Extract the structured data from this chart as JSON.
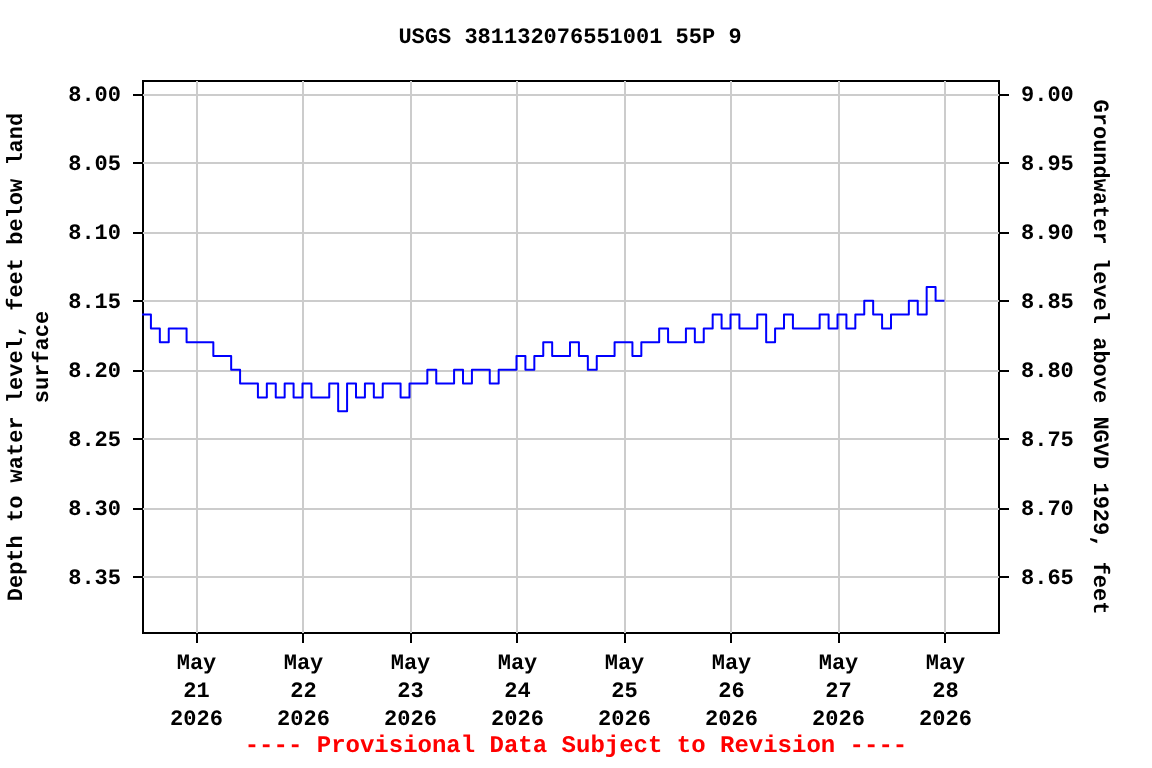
{
  "chart_data": {
    "type": "step",
    "title": "USGS 381132076551001 55P  9",
    "xlabel": null,
    "ylabel": "Depth to water level, feet below land surface",
    "y2label": "Groundwater level above NGVD 1929, feet",
    "annotations": [
      "---- Provisional Data Subject to Revision ----"
    ],
    "xlim": [
      "2026-05-20T12:00",
      "2026-05-28T12:00"
    ],
    "xticks": [
      {
        "value": "2026-05-21T00:00",
        "label": "May\n21\n2026"
      },
      {
        "value": "2026-05-22T00:00",
        "label": "May\n22\n2026"
      },
      {
        "value": "2026-05-23T00:00",
        "label": "May\n23\n2026"
      },
      {
        "value": "2026-05-24T00:00",
        "label": "May\n24\n2026"
      },
      {
        "value": "2026-05-25T00:00",
        "label": "May\n25\n2026"
      },
      {
        "value": "2026-05-26T00:00",
        "label": "May\n26\n2026"
      },
      {
        "value": "2026-05-27T00:00",
        "label": "May\n27\n2026"
      },
      {
        "value": "2026-05-28T00:00",
        "label": "May\n28\n2026"
      }
    ],
    "ylim": [
      8.39,
      7.99
    ],
    "yticks": [
      {
        "value": 8,
        "label": "8.00"
      },
      {
        "value": 8.05,
        "label": "8.05"
      },
      {
        "value": 8.1,
        "label": "8.10"
      },
      {
        "value": 8.15,
        "label": "8.15"
      },
      {
        "value": 8.2,
        "label": "8.20"
      },
      {
        "value": 8.25,
        "label": "8.25"
      },
      {
        "value": 8.3,
        "label": "8.30"
      },
      {
        "value": 8.35,
        "label": "8.35"
      }
    ],
    "y2lim": [
      8.61,
      9.01
    ],
    "y2ticks": [
      {
        "value": 9,
        "label": "9.00"
      },
      {
        "value": 8.95,
        "label": "8.95"
      },
      {
        "value": 8.9,
        "label": "8.90"
      },
      {
        "value": 8.85,
        "label": "8.85"
      },
      {
        "value": 8.8,
        "label": "8.80"
      },
      {
        "value": 8.75,
        "label": "8.75"
      },
      {
        "value": 8.7,
        "label": "8.70"
      },
      {
        "value": 8.65,
        "label": "8.65"
      }
    ],
    "grid": true,
    "x": [
      "2026-05-20T12:00",
      "2026-05-20T14:00",
      "2026-05-20T16:00",
      "2026-05-20T18:00",
      "2026-05-20T20:00",
      "2026-05-20T22:00",
      "2026-05-21T00:00",
      "2026-05-21T02:00",
      "2026-05-21T04:00",
      "2026-05-21T06:00",
      "2026-05-21T08:00",
      "2026-05-21T10:00",
      "2026-05-21T12:00",
      "2026-05-21T14:00",
      "2026-05-21T16:00",
      "2026-05-21T18:00",
      "2026-05-21T20:00",
      "2026-05-21T22:00",
      "2026-05-22T00:00",
      "2026-05-22T02:00",
      "2026-05-22T04:00",
      "2026-05-22T06:00",
      "2026-05-22T08:00",
      "2026-05-22T10:00",
      "2026-05-22T12:00",
      "2026-05-22T14:00",
      "2026-05-22T16:00",
      "2026-05-22T18:00",
      "2026-05-22T20:00",
      "2026-05-22T22:00",
      "2026-05-23T00:00",
      "2026-05-23T02:00",
      "2026-05-23T04:00",
      "2026-05-23T06:00",
      "2026-05-23T08:00",
      "2026-05-23T10:00",
      "2026-05-23T12:00",
      "2026-05-23T14:00",
      "2026-05-23T16:00",
      "2026-05-23T18:00",
      "2026-05-23T20:00",
      "2026-05-23T22:00",
      "2026-05-24T00:00",
      "2026-05-24T02:00",
      "2026-05-24T04:00",
      "2026-05-24T06:00",
      "2026-05-24T08:00",
      "2026-05-24T10:00",
      "2026-05-24T12:00",
      "2026-05-24T14:00",
      "2026-05-24T16:00",
      "2026-05-24T18:00",
      "2026-05-24T20:00",
      "2026-05-24T22:00",
      "2026-05-25T00:00",
      "2026-05-25T02:00",
      "2026-05-25T04:00",
      "2026-05-25T06:00",
      "2026-05-25T08:00",
      "2026-05-25T10:00",
      "2026-05-25T12:00",
      "2026-05-25T14:00",
      "2026-05-25T16:00",
      "2026-05-25T18:00",
      "2026-05-25T20:00",
      "2026-05-25T22:00",
      "2026-05-26T00:00",
      "2026-05-26T02:00",
      "2026-05-26T04:00",
      "2026-05-26T06:00",
      "2026-05-26T08:00",
      "2026-05-26T10:00",
      "2026-05-26T12:00",
      "2026-05-26T14:00",
      "2026-05-26T16:00",
      "2026-05-26T18:00",
      "2026-05-26T20:00",
      "2026-05-26T22:00",
      "2026-05-27T00:00",
      "2026-05-27T02:00",
      "2026-05-27T04:00",
      "2026-05-27T06:00",
      "2026-05-27T08:00",
      "2026-05-27T10:00",
      "2026-05-27T12:00",
      "2026-05-27T14:00",
      "2026-05-27T16:00",
      "2026-05-27T18:00",
      "2026-05-27T20:00",
      "2026-05-27T22:00",
      "2026-05-28T00:00"
    ],
    "series": [
      {
        "color": "#0000ff",
        "values": [
          8.16,
          8.17,
          8.18,
          8.17,
          8.17,
          8.18,
          8.18,
          8.18,
          8.19,
          8.19,
          8.2,
          8.21,
          8.21,
          8.22,
          8.21,
          8.22,
          8.21,
          8.22,
          8.21,
          8.22,
          8.22,
          8.21,
          8.23,
          8.21,
          8.22,
          8.21,
          8.22,
          8.21,
          8.21,
          8.22,
          8.21,
          8.21,
          8.2,
          8.21,
          8.21,
          8.2,
          8.21,
          8.2,
          8.2,
          8.21,
          8.2,
          8.2,
          8.19,
          8.2,
          8.19,
          8.18,
          8.19,
          8.19,
          8.18,
          8.19,
          8.2,
          8.19,
          8.19,
          8.18,
          8.18,
          8.19,
          8.18,
          8.18,
          8.17,
          8.18,
          8.18,
          8.17,
          8.18,
          8.17,
          8.16,
          8.17,
          8.16,
          8.17,
          8.17,
          8.16,
          8.18,
          8.17,
          8.16,
          8.17,
          8.17,
          8.17,
          8.16,
          8.17,
          8.16,
          8.17,
          8.16,
          8.15,
          8.16,
          8.17,
          8.16,
          8.16,
          8.15,
          8.16,
          8.14,
          8.15,
          8.15
        ]
      }
    ]
  }
}
